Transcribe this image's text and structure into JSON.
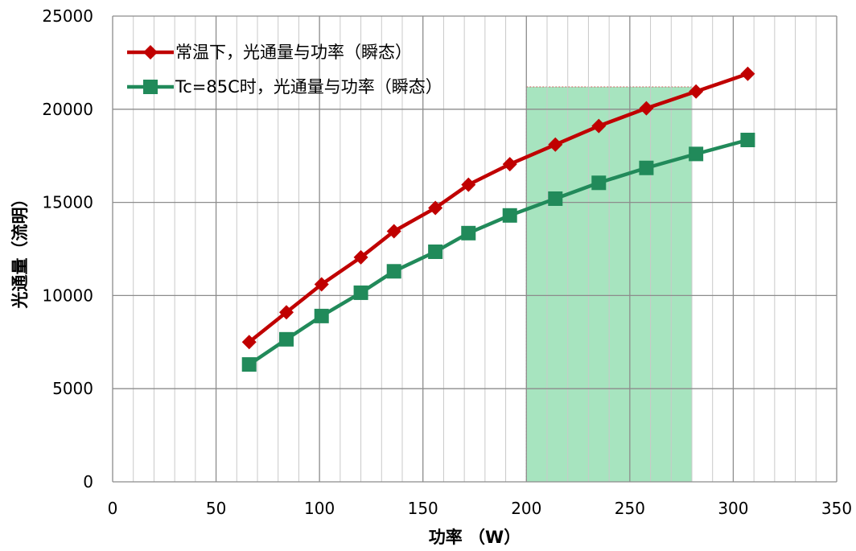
{
  "chart_data": {
    "type": "line",
    "xlabel": "功率 （W）",
    "ylabel": "光通量（流明）",
    "xlim": [
      0,
      350
    ],
    "ylim": [
      0,
      25000
    ],
    "x_ticks": [
      0,
      50,
      100,
      150,
      200,
      250,
      300,
      350
    ],
    "y_ticks": [
      0,
      5000,
      10000,
      15000,
      20000,
      25000
    ],
    "grid": true,
    "legend_position": "top-left",
    "highlight_region": {
      "x_start": 200,
      "x_end": 280,
      "y_end": 21200,
      "color": "#5fce8a"
    },
    "series": [
      {
        "name": "常温下，光通量与功率（瞬态）",
        "color": "#c00000",
        "marker": "diamond",
        "x": [
          66,
          84,
          101,
          120,
          136,
          156,
          172,
          192,
          214,
          235,
          258,
          282,
          307
        ],
        "y": [
          7500,
          9100,
          10600,
          12050,
          13450,
          14700,
          15950,
          17050,
          18100,
          19100,
          20050,
          20950,
          21900
        ]
      },
      {
        "name": "Tc=85C时，光通量与功率（瞬态）",
        "color": "#218a5a",
        "marker": "square",
        "x": [
          66,
          84,
          101,
          120,
          136,
          156,
          172,
          192,
          214,
          235,
          258,
          282,
          307
        ],
        "y": [
          6300,
          7650,
          8900,
          10150,
          11300,
          12350,
          13350,
          14300,
          15200,
          16050,
          16850,
          17600,
          18350
        ]
      }
    ]
  }
}
